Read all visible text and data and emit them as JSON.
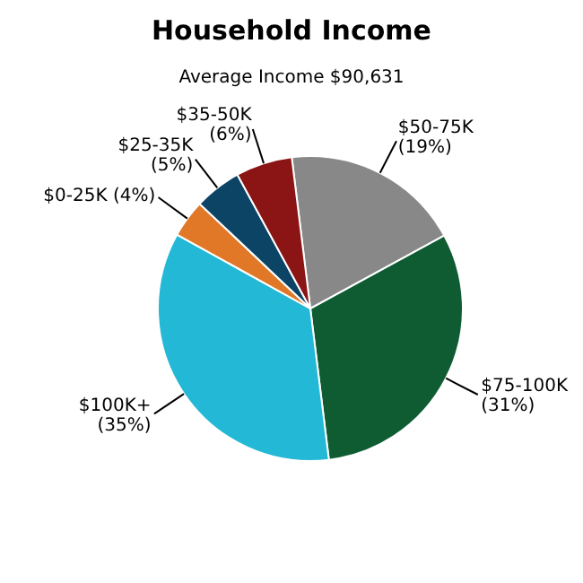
{
  "chart_data": {
    "type": "pie",
    "title": "Household Income",
    "subtitle": "Average Income  $90,631",
    "categories": [
      "$50-75K",
      "$75-100K",
      "$100K+",
      "$0-25K",
      "$25-35K",
      "$35-50K"
    ],
    "values": [
      19,
      31,
      35,
      4,
      5,
      6
    ],
    "colors": [
      "#888888",
      "#0f5c32",
      "#22b8d6",
      "#e07828",
      "#0c4466",
      "#8b1414"
    ],
    "value_labels": [
      "(19%)",
      "(31%)",
      "(35%)",
      "(4%)",
      "(5%)",
      "(6%)"
    ],
    "legend": false
  }
}
